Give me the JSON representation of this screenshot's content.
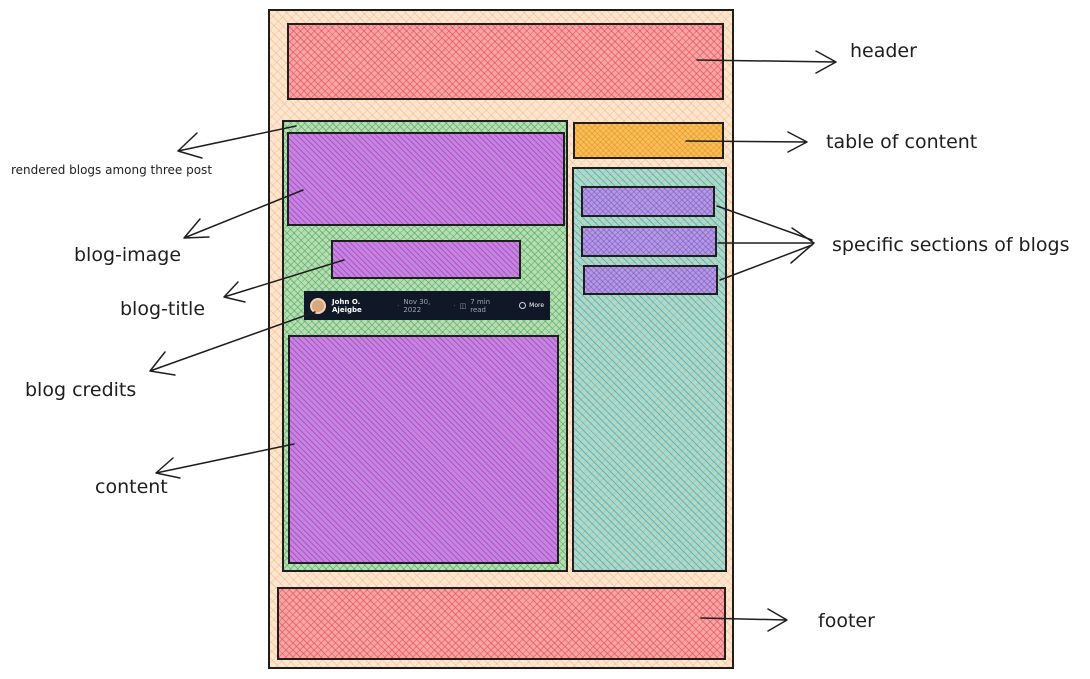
{
  "labels": {
    "header": "header",
    "table_of_content": "table of content",
    "rendered_blogs": "rendered blogs among three post",
    "blog_image": "blog-image",
    "blog_title": "blog-title",
    "specific_sections": "specific sections of blogs",
    "blog_credits": "blog credits",
    "content": "content",
    "footer": "footer"
  },
  "credits": {
    "author": "John O. Ajeigbe",
    "date": "Nov 30, 2022",
    "read_time": "7 min read",
    "more": "More"
  },
  "colors": {
    "page": "#fde6cf",
    "header": "#f6a4a4",
    "main_column": "#b7ddb5",
    "blog_parts": "#cf7fe1",
    "table_of_content": "#f7bf5c",
    "sidebar": "#a9d9cf",
    "section_items": "#b49ae0",
    "footer": "#f6a4a4"
  }
}
